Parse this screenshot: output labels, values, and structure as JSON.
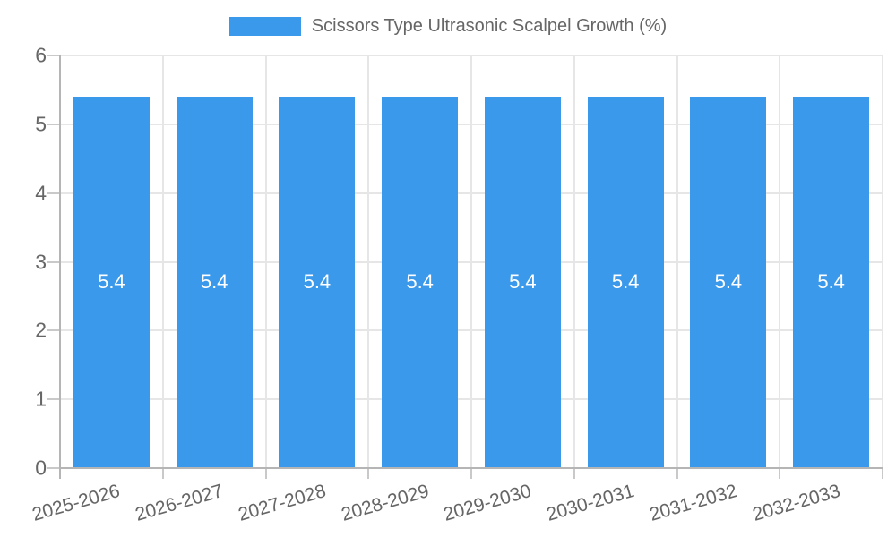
{
  "legend": {
    "label": "Scissors Type Ultrasonic Scalpel Growth (%)",
    "swatch_color": "#3B99EC"
  },
  "chart_data": {
    "type": "bar",
    "title": "Scissors Type Ultrasonic Scalpel Growth (%)",
    "categories": [
      "2025-2026",
      "2026-2027",
      "2027-2028",
      "2028-2029",
      "2029-2030",
      "2030-2031",
      "2031-2032",
      "2032-2033"
    ],
    "series": [
      {
        "name": "Scissors Type Ultrasonic Scalpel Growth (%)",
        "values": [
          5.4,
          5.4,
          5.4,
          5.4,
          5.4,
          5.4,
          5.4,
          5.4
        ],
        "value_labels": [
          "5.4",
          "5.4",
          "5.4",
          "5.4",
          "5.4",
          "5.4",
          "5.4",
          "5.4"
        ]
      }
    ],
    "ylim": [
      0,
      6
    ],
    "yticks": [
      0,
      1,
      2,
      3,
      4,
      5,
      6
    ],
    "ytick_labels": [
      "0",
      "1",
      "2",
      "3",
      "4",
      "5",
      "6"
    ],
    "grid": true,
    "legend_position": "top-center",
    "xlabel": "",
    "ylabel": "",
    "colors": {
      "bar": "#3B99EC",
      "bar_value_text": "#ffffff",
      "axis_text": "#666666",
      "gridline": "#e6e6e6",
      "axis_line": "#b5b5b5",
      "tick_mark": "#c9c9c9",
      "background": "#ffffff"
    }
  }
}
